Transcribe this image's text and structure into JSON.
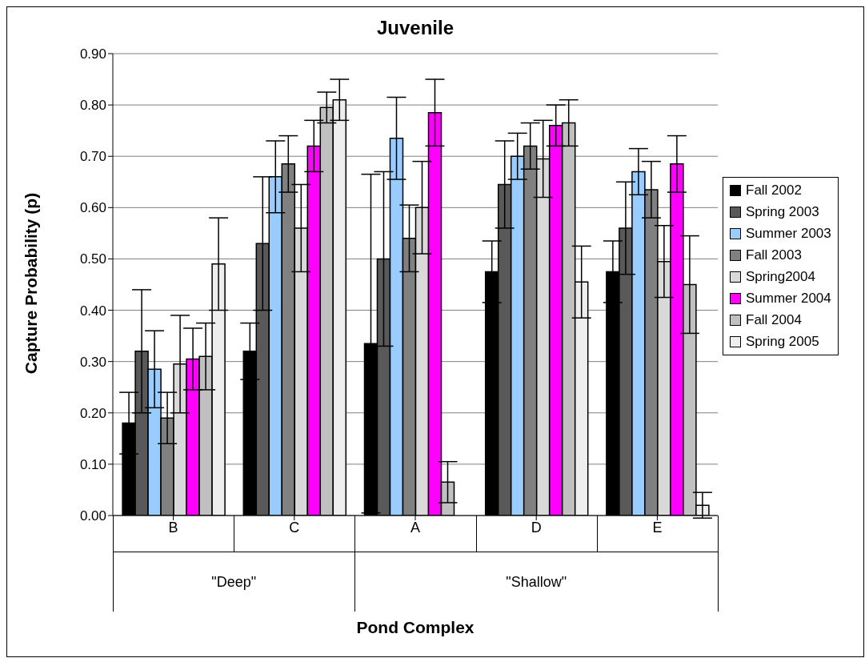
{
  "chart_data": {
    "type": "bar",
    "title": "Juvenile",
    "xlabel": "Pond Complex",
    "ylabel": "Capture Probability (p)",
    "categories": [
      "B",
      "C",
      "A",
      "D",
      "E"
    ],
    "annotations": [
      "\"Deep\"",
      "\"Shallow\""
    ],
    "series": [
      {
        "name": "Fall 2002",
        "color": "#000000",
        "values": [
          0.18,
          0.32,
          0.335,
          0.475,
          0.475
        ],
        "errors": [
          0.06,
          0.055,
          0.33,
          0.06,
          0.06
        ]
      },
      {
        "name": "Spring 2003",
        "color": "#595959",
        "values": [
          0.32,
          0.53,
          0.5,
          0.645,
          0.56
        ],
        "errors": [
          0.12,
          0.13,
          0.17,
          0.085,
          0.09
        ]
      },
      {
        "name": "Summer 2003",
        "color": "#99ccff",
        "values": [
          0.285,
          0.66,
          0.735,
          0.7,
          0.67
        ],
        "errors": [
          0.075,
          0.07,
          0.08,
          0.045,
          0.045
        ]
      },
      {
        "name": "Fall 2003",
        "color": "#808080",
        "values": [
          0.19,
          0.685,
          0.54,
          0.72,
          0.635
        ],
        "errors": [
          0.05,
          0.055,
          0.065,
          0.045,
          0.055
        ]
      },
      {
        "name": "Spring2004",
        "color": "#d9d9d9",
        "values": [
          0.295,
          0.56,
          0.6,
          0.695,
          0.495
        ],
        "errors": [
          0.095,
          0.085,
          0.09,
          0.075,
          0.07
        ]
      },
      {
        "name": "Summer 2004",
        "color": "#ff00ff",
        "values": [
          0.305,
          0.72,
          0.785,
          0.76,
          0.685
        ],
        "errors": [
          0.06,
          0.05,
          0.065,
          0.04,
          0.055
        ]
      },
      {
        "name": "Fall 2004",
        "color": "#c0c0c0",
        "values": [
          0.31,
          0.795,
          0.065,
          0.765,
          0.45
        ],
        "errors": [
          0.065,
          0.03,
          0.04,
          0.045,
          0.095
        ]
      },
      {
        "name": "Spring 2005",
        "color": "#eeeeee",
        "values": [
          0.49,
          0.81,
          null,
          0.455,
          0.02
        ],
        "errors": [
          0.09,
          0.04,
          null,
          0.07,
          0.025
        ]
      }
    ],
    "ylim": [
      0,
      0.9
    ],
    "yticks": [
      {
        "value": 0,
        "label": "0.00"
      },
      {
        "value": 0.1,
        "label": "0.10"
      },
      {
        "value": 0.2,
        "label": "0.20"
      },
      {
        "value": 0.3,
        "label": "0.30"
      },
      {
        "value": 0.4,
        "label": "0.40"
      },
      {
        "value": 0.5,
        "label": "0.50"
      },
      {
        "value": 0.6,
        "label": "0.60"
      },
      {
        "value": 0.7,
        "label": "0.70"
      },
      {
        "value": 0.8,
        "label": "0.80"
      },
      {
        "value": 0.9,
        "label": "0.90"
      }
    ],
    "grid": "y",
    "legend": "right"
  }
}
